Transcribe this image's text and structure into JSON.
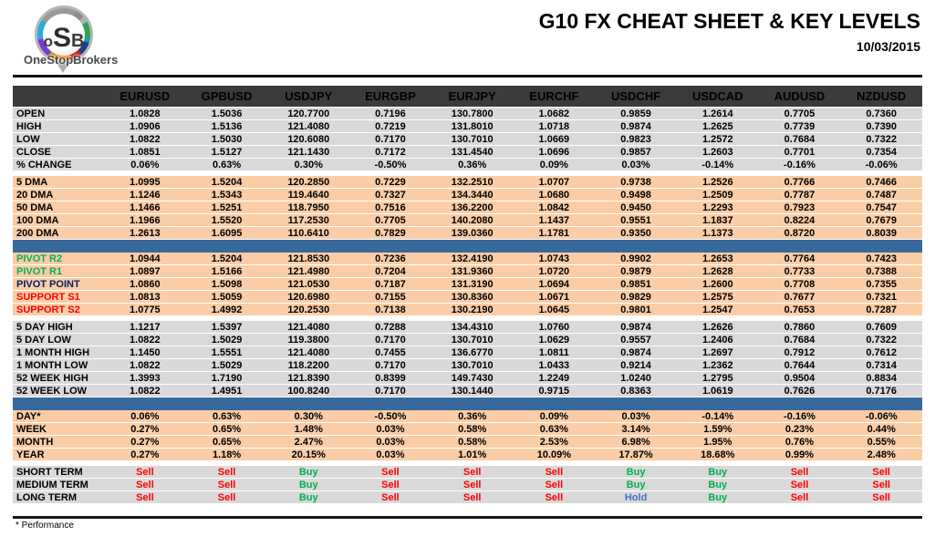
{
  "header": {
    "title": "G10 FX CHEAT SHEET & KEY LEVELS",
    "date": "10/03/2015",
    "logo": {
      "letter_o": "o",
      "letter_s": "S",
      "letter_b": "B",
      "brand": "OneStopBrokers"
    }
  },
  "footer": {
    "note": "* Performance"
  },
  "colors": {
    "header_bg": "#3B3B3B",
    "gray_row": "#D9D9D9",
    "peach_row": "#FACDA6",
    "divider_blue": "#38699C",
    "green": "#00B050",
    "red": "#FF0000",
    "navy": "#002060",
    "hold_blue": "#4472C4"
  },
  "table": {
    "columns": [
      "EURUSD",
      "GPBUSD",
      "USDJPY",
      "EURGBP",
      "EURJPY",
      "EURCHF",
      "USDCHF",
      "USDCAD",
      "AUDUSD",
      "NZDUSD"
    ],
    "signal_colors": {
      "Sell": "red",
      "Buy": "green",
      "Hold": "hold_blue"
    },
    "sections": [
      {
        "name": "ohlc",
        "style": "gray",
        "separator_before": "none",
        "rows": [
          {
            "label": "OPEN",
            "values": [
              "1.0828",
              "1.5036",
              "120.7700",
              "0.7196",
              "130.7800",
              "1.0682",
              "0.9859",
              "1.2614",
              "0.7705",
              "0.7360"
            ]
          },
          {
            "label": "HIGH",
            "values": [
              "1.0906",
              "1.5136",
              "121.4080",
              "0.7219",
              "131.8010",
              "1.0718",
              "0.9874",
              "1.2625",
              "0.7739",
              "0.7390"
            ]
          },
          {
            "label": "LOW",
            "values": [
              "1.0822",
              "1.5030",
              "120.6080",
              "0.7170",
              "130.7010",
              "1.0669",
              "0.9823",
              "1.2572",
              "0.7684",
              "0.7322"
            ]
          },
          {
            "label": "CLOSE",
            "values": [
              "1.0851",
              "1.5127",
              "121.1430",
              "0.7172",
              "131.4540",
              "1.0696",
              "0.9857",
              "1.2603",
              "0.7701",
              "0.7354"
            ]
          },
          {
            "label": "% CHANGE",
            "values": [
              "0.06%",
              "0.63%",
              "0.30%",
              "-0.50%",
              "0.36%",
              "0.09%",
              "0.03%",
              "-0.14%",
              "-0.16%",
              "-0.06%"
            ]
          }
        ]
      },
      {
        "name": "moving-averages",
        "style": "peach",
        "separator_before": "gap",
        "rows": [
          {
            "label": "5 DMA",
            "values": [
              "1.0995",
              "1.5204",
              "120.2850",
              "0.7229",
              "132.2510",
              "1.0707",
              "0.9738",
              "1.2526",
              "0.7766",
              "0.7466"
            ]
          },
          {
            "label": "20 DMA",
            "values": [
              "1.1246",
              "1.5343",
              "119.4640",
              "0.7327",
              "134.3440",
              "1.0680",
              "0.9498",
              "1.2509",
              "0.7787",
              "0.7487"
            ]
          },
          {
            "label": "50 DMA",
            "values": [
              "1.1466",
              "1.5251",
              "118.7950",
              "0.7516",
              "136.2200",
              "1.0842",
              "0.9450",
              "1.2293",
              "0.7923",
              "0.7547"
            ]
          },
          {
            "label": "100 DMA",
            "values": [
              "1.1966",
              "1.5520",
              "117.2530",
              "0.7705",
              "140.2080",
              "1.1437",
              "0.9551",
              "1.1837",
              "0.8224",
              "0.7679"
            ]
          },
          {
            "label": "200 DMA",
            "values": [
              "1.2613",
              "1.6095",
              "110.6410",
              "0.7829",
              "139.0360",
              "1.1781",
              "0.9350",
              "1.1373",
              "0.8720",
              "0.8039"
            ]
          }
        ]
      },
      {
        "name": "pivots",
        "style": "peach",
        "separator_before": "blue_bar",
        "rows": [
          {
            "label": "PIVOT R2",
            "label_color": "green",
            "values": [
              "1.0944",
              "1.5204",
              "121.8530",
              "0.7236",
              "132.4190",
              "1.0743",
              "0.9902",
              "1.2653",
              "0.7764",
              "0.7423"
            ]
          },
          {
            "label": "PIVOT R1",
            "label_color": "green",
            "values": [
              "1.0897",
              "1.5166",
              "121.4980",
              "0.7204",
              "131.9360",
              "1.0720",
              "0.9879",
              "1.2628",
              "0.7733",
              "0.7388"
            ]
          },
          {
            "label": "PIVOT POINT",
            "label_color": "navy",
            "values": [
              "1.0860",
              "1.5098",
              "121.0530",
              "0.7187",
              "131.3190",
              "1.0694",
              "0.9851",
              "1.2600",
              "0.7708",
              "0.7355"
            ]
          },
          {
            "label": "SUPPORT S1",
            "label_color": "red",
            "values": [
              "1.0813",
              "1.5059",
              "120.6980",
              "0.7155",
              "130.8360",
              "1.0671",
              "0.9829",
              "1.2575",
              "0.7677",
              "0.7321"
            ]
          },
          {
            "label": "SUPPORT S2",
            "label_color": "red",
            "values": [
              "1.0775",
              "1.4992",
              "120.2530",
              "0.7138",
              "130.2190",
              "1.0645",
              "0.9801",
              "1.2547",
              "0.7653",
              "0.7287"
            ]
          }
        ]
      },
      {
        "name": "ranges",
        "style": "gray",
        "separator_before": "gap",
        "rows": [
          {
            "label": "5 DAY HIGH",
            "values": [
              "1.1217",
              "1.5397",
              "121.4080",
              "0.7288",
              "134.4310",
              "1.0760",
              "0.9874",
              "1.2626",
              "0.7860",
              "0.7609"
            ]
          },
          {
            "label": "5 DAY LOW",
            "values": [
              "1.0822",
              "1.5029",
              "119.3800",
              "0.7170",
              "130.7010",
              "1.0629",
              "0.9557",
              "1.2406",
              "0.7684",
              "0.7322"
            ]
          },
          {
            "label": "1 MONTH HIGH",
            "values": [
              "1.1450",
              "1.5551",
              "121.4080",
              "0.7455",
              "136.6770",
              "1.0811",
              "0.9874",
              "1.2697",
              "0.7912",
              "0.7612"
            ]
          },
          {
            "label": "1 MONTH LOW",
            "values": [
              "1.0822",
              "1.5029",
              "118.2200",
              "0.7170",
              "130.7010",
              "1.0433",
              "0.9214",
              "1.2362",
              "0.7644",
              "0.7314"
            ]
          },
          {
            "label": "52 WEEK HIGH",
            "values": [
              "1.3993",
              "1.7190",
              "121.8390",
              "0.8399",
              "149.7430",
              "1.2249",
              "1.0240",
              "1.2795",
              "0.9504",
              "0.8834"
            ]
          },
          {
            "label": "52 WEEK LOW",
            "values": [
              "1.0822",
              "1.4951",
              "100.8240",
              "0.7170",
              "130.1440",
              "0.9715",
              "0.8363",
              "1.0619",
              "0.7626",
              "0.7176"
            ]
          }
        ]
      },
      {
        "name": "performance",
        "style": "peach",
        "separator_before": "blue_bar",
        "rows": [
          {
            "label": "DAY*",
            "values": [
              "0.06%",
              "0.63%",
              "0.30%",
              "-0.50%",
              "0.36%",
              "0.09%",
              "0.03%",
              "-0.14%",
              "-0.16%",
              "-0.06%"
            ]
          },
          {
            "label": "WEEK",
            "values": [
              "0.27%",
              "0.65%",
              "1.48%",
              "0.03%",
              "0.58%",
              "0.63%",
              "3.14%",
              "1.59%",
              "0.23%",
              "0.44%"
            ]
          },
          {
            "label": "MONTH",
            "values": [
              "0.27%",
              "0.65%",
              "2.47%",
              "0.03%",
              "0.58%",
              "2.53%",
              "6.98%",
              "1.95%",
              "0.76%",
              "0.55%"
            ]
          },
          {
            "label": "YEAR",
            "values": [
              "0.27%",
              "1.18%",
              "20.15%",
              "0.03%",
              "1.01%",
              "10.09%",
              "17.87%",
              "18.68%",
              "0.99%",
              "2.48%"
            ]
          }
        ]
      },
      {
        "name": "recommendations",
        "style": "gray",
        "separator_before": "gap",
        "rows": [
          {
            "label": "SHORT TERM",
            "signals": [
              "Sell",
              "Sell",
              "Buy",
              "Sell",
              "Sell",
              "Sell",
              "Buy",
              "Buy",
              "Sell",
              "Sell"
            ]
          },
          {
            "label": "MEDIUM TERM",
            "signals": [
              "Sell",
              "Sell",
              "Buy",
              "Sell",
              "Sell",
              "Sell",
              "Buy",
              "Buy",
              "Sell",
              "Sell"
            ]
          },
          {
            "label": "LONG TERM",
            "signals": [
              "Sell",
              "Sell",
              "Buy",
              "Sell",
              "Sell",
              "Sell",
              "Hold",
              "Buy",
              "Sell",
              "Sell"
            ]
          }
        ]
      }
    ]
  }
}
